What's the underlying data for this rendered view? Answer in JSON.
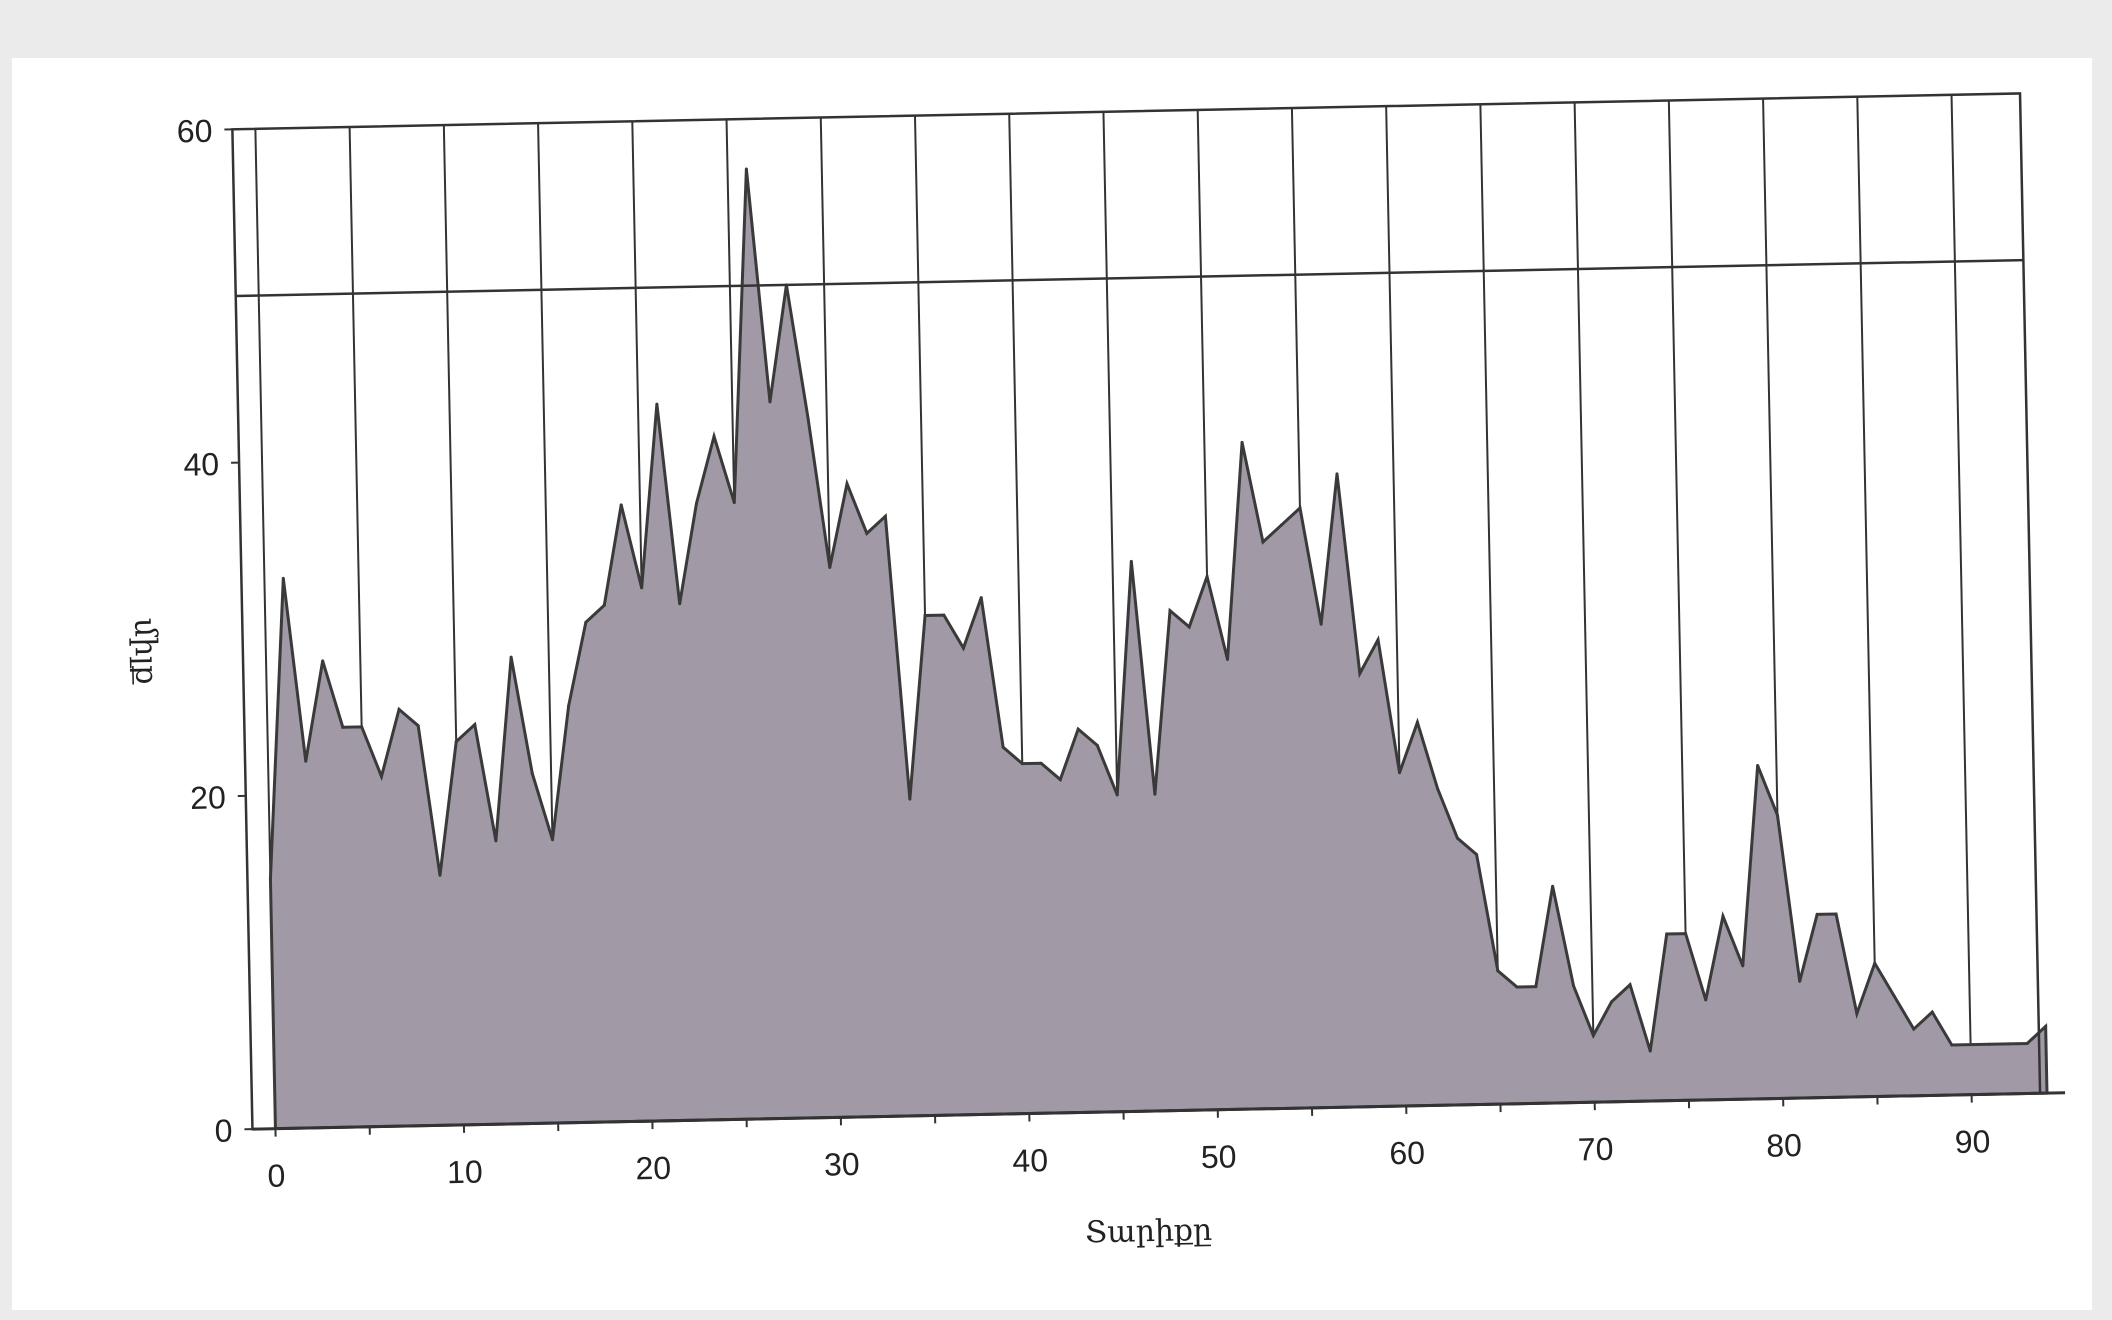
{
  "chart_data": {
    "type": "area",
    "title": "",
    "xlabel": "Տարիքը",
    "ylabel": "միլք",
    "xlim": [
      0,
      95
    ],
    "ylim": [
      0,
      60
    ],
    "grid": {
      "vertical": true,
      "horizontal": false
    },
    "x_ticks": [
      0,
      10,
      20,
      30,
      40,
      50,
      60,
      70,
      80,
      90
    ],
    "y_ticks": [
      0,
      20,
      40,
      60
    ],
    "reference_line": 50,
    "colors": {
      "fill": "#a19aa6",
      "line": "#3a3a3a",
      "grid": "#333333",
      "background": "#ffffff"
    },
    "x": [
      0,
      1,
      2,
      3,
      4,
      5,
      6,
      7,
      8,
      9,
      10,
      11,
      12,
      13,
      14,
      15,
      16,
      17,
      18,
      19,
      20,
      21,
      22,
      23,
      24,
      25,
      26,
      27,
      28,
      29,
      30,
      31,
      32,
      33,
      34,
      35,
      36,
      37,
      38,
      39,
      40,
      41,
      42,
      43,
      44,
      45,
      46,
      47,
      48,
      49,
      50,
      51,
      52,
      53,
      54,
      55,
      56,
      57,
      58,
      59,
      60,
      61,
      62,
      63,
      64,
      65,
      66,
      67,
      68,
      69,
      70,
      71,
      72,
      73,
      74,
      75,
      76,
      77,
      78,
      79,
      80,
      81,
      82,
      83,
      84,
      85,
      86,
      87,
      88,
      89,
      90,
      91,
      92,
      93,
      94
    ],
    "values": [
      15,
      33,
      22,
      28,
      24,
      24,
      21,
      25,
      24,
      15,
      23,
      24,
      17,
      28,
      21,
      17,
      25,
      30,
      31,
      37,
      32,
      43,
      31,
      37,
      41,
      37,
      57,
      43,
      50,
      42,
      33,
      38,
      35,
      36,
      19,
      30,
      30,
      28,
      31,
      22,
      21,
      21,
      20,
      23,
      22,
      19,
      33,
      19,
      30,
      29,
      32,
      27,
      40,
      34,
      35,
      36,
      29,
      38,
      26,
      28,
      20,
      23,
      19,
      16,
      15,
      8,
      7,
      7,
      13,
      7,
      4,
      6,
      7,
      3,
      10,
      10,
      6,
      11,
      8,
      20,
      17,
      7,
      11,
      11,
      5,
      8,
      6,
      4,
      5,
      3,
      3,
      3,
      3,
      3,
      4
    ]
  }
}
